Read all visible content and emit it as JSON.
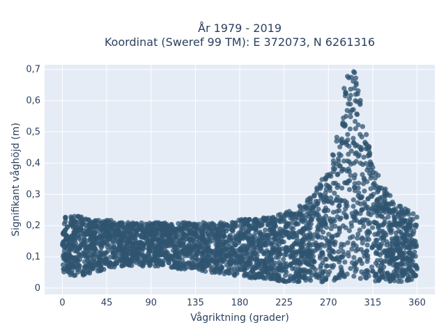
{
  "chart_data": {
    "type": "scatter",
    "title_line1": "År 1979 - 2019",
    "title_line2": "Koordinat (Sweref 99 TM): E 372073, N 6261316",
    "xlabel": "Vågriktning (grader)",
    "ylabel": "Signifikant våghöjd (m)",
    "xlim": [
      -18,
      378
    ],
    "ylim": [
      -0.02,
      0.715
    ],
    "x_ticks": [
      0,
      45,
      90,
      135,
      180,
      225,
      270,
      315,
      360
    ],
    "x_tick_labels": [
      "0",
      "45",
      "90",
      "135",
      "180",
      "225",
      "270",
      "315",
      "360"
    ],
    "y_ticks": [
      0,
      0.1,
      0.2,
      0.3,
      0.4,
      0.5,
      0.6,
      0.7
    ],
    "y_tick_labels": [
      "0",
      "0,1",
      "0,2",
      "0,3",
      "0,4",
      "0,5",
      "0,6",
      "0,7"
    ],
    "grid": true,
    "background_color": "#e5ecf6",
    "marker_color": "#2f5470",
    "envelope": {
      "x": [
        0,
        10,
        20,
        30,
        45,
        60,
        75,
        90,
        105,
        120,
        135,
        150,
        165,
        180,
        195,
        210,
        225,
        240,
        250,
        260,
        270,
        277,
        283,
        288,
        292,
        296,
        300,
        304,
        308,
        313,
        318,
        325,
        335,
        345,
        360
      ],
      "y_min": [
        0.05,
        0.04,
        0.04,
        0.05,
        0.06,
        0.07,
        0.07,
        0.07,
        0.07,
        0.06,
        0.06,
        0.05,
        0.04,
        0.04,
        0.03,
        0.03,
        0.02,
        0.02,
        0.02,
        0.02,
        0.02,
        0.02,
        0.02,
        0.02,
        0.02,
        0.02,
        0.02,
        0.02,
        0.02,
        0.02,
        0.02,
        0.02,
        0.02,
        0.02,
        0.03
      ],
      "y_max": [
        0.24,
        0.23,
        0.23,
        0.22,
        0.22,
        0.21,
        0.21,
        0.21,
        0.21,
        0.21,
        0.21,
        0.21,
        0.21,
        0.22,
        0.22,
        0.23,
        0.24,
        0.26,
        0.29,
        0.33,
        0.38,
        0.46,
        0.6,
        0.67,
        0.7,
        0.7,
        0.66,
        0.58,
        0.5,
        0.43,
        0.38,
        0.33,
        0.29,
        0.26,
        0.24
      ]
    }
  }
}
